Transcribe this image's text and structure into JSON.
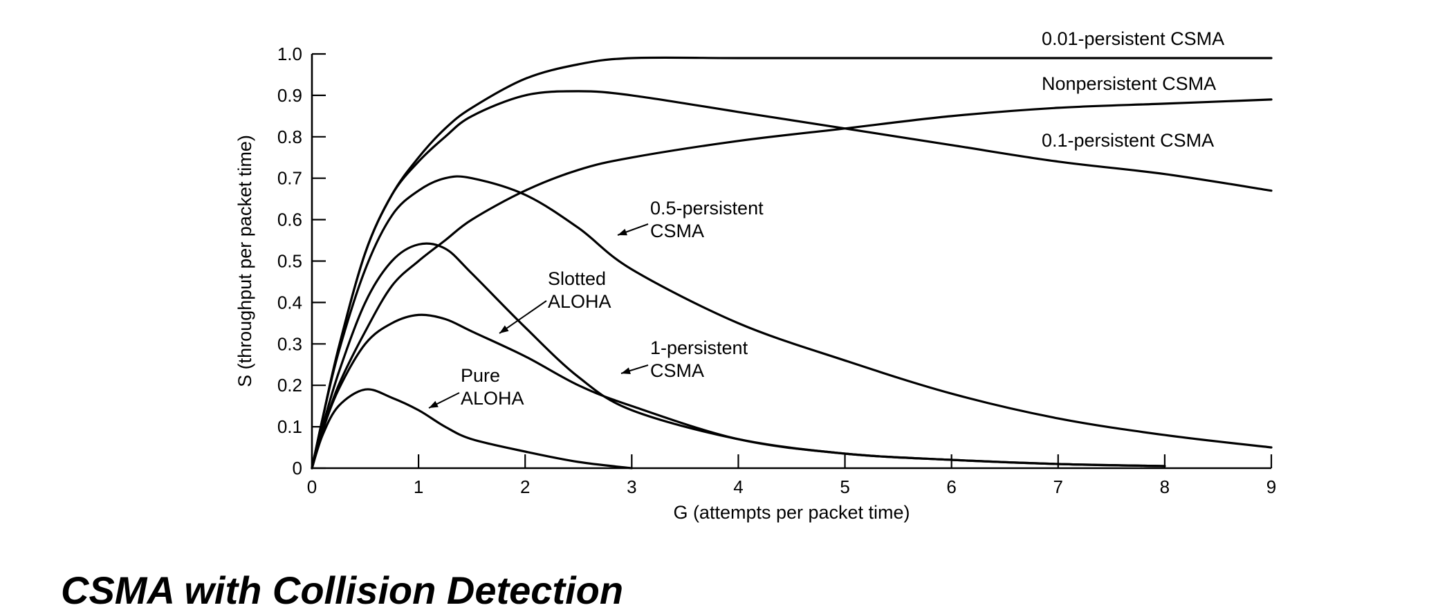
{
  "heading": "CSMA with Collision Detection",
  "chart_data": {
    "type": "line",
    "title": "",
    "xlabel": "G (attempts per packet time)",
    "ylabel": "S (throughput per packet time)",
    "xlim": [
      0,
      9
    ],
    "ylim": [
      0,
      1.0
    ],
    "x_ticks": [
      "0",
      "1",
      "2",
      "3",
      "4",
      "5",
      "6",
      "7",
      "8",
      "9"
    ],
    "y_ticks": [
      "0",
      "0.1",
      "0.2",
      "0.3",
      "0.4",
      "0.5",
      "0.6",
      "0.7",
      "0.8",
      "0.9",
      "1.0"
    ],
    "grid": false,
    "legend": "none",
    "x": [
      0,
      0.1,
      0.25,
      0.5,
      0.75,
      1,
      1.25,
      1.5,
      2,
      2.5,
      3,
      4,
      5,
      6,
      7,
      8,
      9
    ],
    "series": [
      {
        "name": "Pure ALOHA",
        "label_lines": [
          "Pure",
          "ALOHA"
        ],
        "values": [
          0,
          0.08,
          0.15,
          0.19,
          0.17,
          0.14,
          0.1,
          0.07,
          0.04,
          0.015,
          0.0,
          null,
          null,
          null,
          null,
          null,
          null
        ]
      },
      {
        "name": "Slotted ALOHA",
        "label_lines": [
          "Slotted",
          "ALOHA"
        ],
        "values": [
          0,
          0.09,
          0.19,
          0.3,
          0.35,
          0.37,
          0.36,
          0.33,
          0.27,
          0.2,
          0.15,
          0.07,
          0.035,
          0.02,
          0.01,
          0.005,
          null
        ]
      },
      {
        "name": "1-persistent CSMA",
        "label_lines": [
          "1-persistent",
          "CSMA"
        ],
        "values": [
          0,
          0.1,
          0.23,
          0.4,
          0.5,
          0.54,
          0.53,
          0.47,
          0.34,
          0.22,
          0.14,
          0.07,
          0.035,
          0.02,
          0.01,
          0.005,
          null
        ]
      },
      {
        "name": "0.5-persistent CSMA",
        "label_lines": [
          "0.5-persistent",
          "CSMA"
        ],
        "values": [
          0,
          0.12,
          0.28,
          0.48,
          0.61,
          0.67,
          0.7,
          0.7,
          0.66,
          0.58,
          0.48,
          0.35,
          0.26,
          0.18,
          0.12,
          0.08,
          0.05
        ]
      },
      {
        "name": "0.1-persistent CSMA",
        "label_lines": [
          "0.1-persistent CSMA"
        ],
        "values": [
          0,
          0.09,
          0.2,
          0.33,
          0.44,
          0.5,
          0.55,
          0.6,
          0.67,
          0.72,
          0.75,
          0.79,
          0.82,
          0.85,
          0.87,
          0.88,
          0.89
        ]
      },
      {
        "name": "Nonpersistent CSMA",
        "label_lines": [
          "Nonpersistent CSMA"
        ],
        "values": [
          0,
          0.12,
          0.29,
          0.52,
          0.66,
          0.74,
          0.8,
          0.85,
          0.9,
          0.91,
          0.9,
          0.86,
          0.82,
          0.78,
          0.74,
          0.71,
          0.67
        ]
      },
      {
        "name": "0.01-persistent CSMA",
        "label_lines": [
          "0.01-persistent CSMA"
        ],
        "values": [
          0,
          0.12,
          0.29,
          0.52,
          0.66,
          0.75,
          0.82,
          0.87,
          0.94,
          0.975,
          0.99,
          0.99,
          0.99,
          0.99,
          0.99,
          0.99,
          0.99
        ]
      }
    ]
  }
}
